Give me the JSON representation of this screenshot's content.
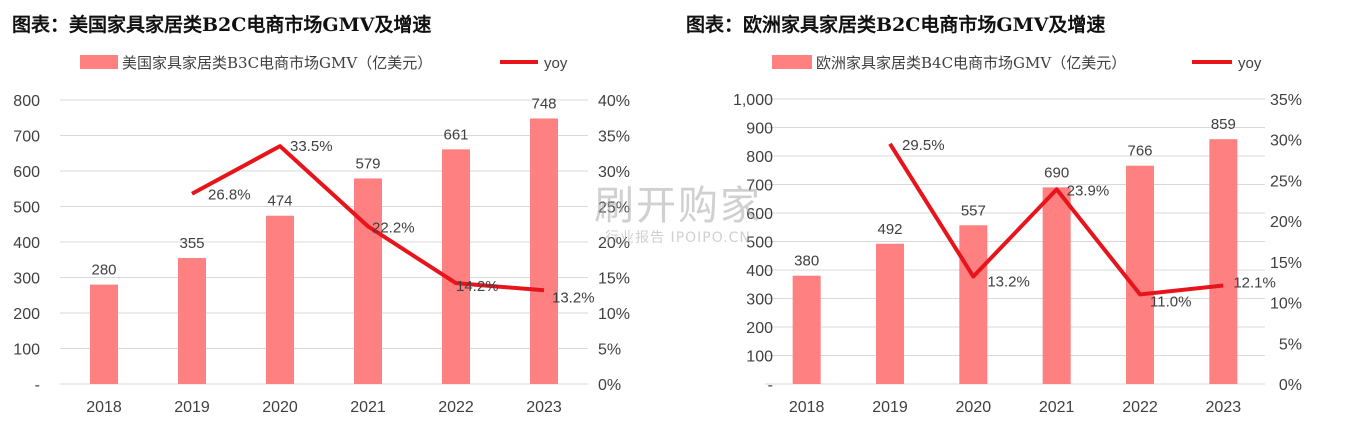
{
  "colors": {
    "bar": "#ff8080",
    "line": "#e8141c",
    "grid": "#d9d9d9",
    "text": "#404040"
  },
  "watermark": {
    "main": "刷开购家",
    "sub": "行业报告 IPOIPO.CN"
  },
  "chart_data": [
    {
      "type": "bar+line",
      "title": "图表：美国家具家居类B2C电商市场GMV及增速",
      "categories": [
        "2018",
        "2019",
        "2020",
        "2021",
        "2022",
        "2023"
      ],
      "series": [
        {
          "name": "美国家具家居类B3C电商市场GMV（亿美元）",
          "type": "bar",
          "axis": "left",
          "values": [
            280,
            355,
            474,
            579,
            661,
            748
          ],
          "labels": [
            "280",
            "355",
            "474",
            "579",
            "661",
            "748"
          ]
        },
        {
          "name": "yoy",
          "type": "line",
          "axis": "right",
          "values": [
            null,
            26.8,
            33.5,
            22.2,
            14.2,
            13.2
          ],
          "labels": [
            "",
            "26.8%",
            "33.5%",
            "22.2%",
            "14.2%",
            "13.2%"
          ]
        }
      ],
      "left_axis": {
        "ylim": [
          0,
          800
        ],
        "ticks": [
          "-",
          "100",
          "200",
          "300",
          "400",
          "500",
          "600",
          "700",
          "800"
        ]
      },
      "right_axis": {
        "ylim": [
          0,
          40
        ],
        "ticks": [
          "0%",
          "5%",
          "10%",
          "15%",
          "20%",
          "25%",
          "30%",
          "35%",
          "40%"
        ]
      },
      "grid": true,
      "legend": "top"
    },
    {
      "type": "bar+line",
      "title": "图表：欧洲家具家居类B2C电商市场GMV及增速",
      "categories": [
        "2018",
        "2019",
        "2020",
        "2021",
        "2022",
        "2023"
      ],
      "series": [
        {
          "name": "欧洲家具家居类B4C电商市场GMV（亿美元）",
          "type": "bar",
          "axis": "left",
          "values": [
            380,
            492,
            557,
            690,
            766,
            859
          ],
          "labels": [
            "380",
            "492",
            "557",
            "690",
            "766",
            "859"
          ]
        },
        {
          "name": "yoy",
          "type": "line",
          "axis": "right",
          "values": [
            null,
            29.5,
            13.2,
            23.9,
            11.0,
            12.1
          ],
          "labels": [
            "",
            "29.5%",
            "13.2%",
            "23.9%",
            "11.0%",
            "12.1%"
          ]
        }
      ],
      "left_axis": {
        "ylim": [
          0,
          1000
        ],
        "ticks": [
          "-",
          "100",
          "200",
          "300",
          "400",
          "500",
          "600",
          "700",
          "800",
          "900",
          "1,000"
        ]
      },
      "right_axis": {
        "ylim": [
          0,
          35
        ],
        "ticks": [
          "0%",
          "5%",
          "10%",
          "15%",
          "20%",
          "25%",
          "30%",
          "35%"
        ]
      },
      "grid": true,
      "legend": "top"
    }
  ]
}
